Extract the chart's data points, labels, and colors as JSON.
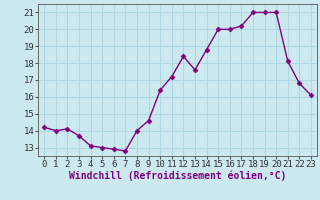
{
  "x": [
    0,
    1,
    2,
    3,
    4,
    5,
    6,
    7,
    8,
    9,
    10,
    11,
    12,
    13,
    14,
    15,
    16,
    17,
    18,
    19,
    20,
    21,
    22,
    23
  ],
  "y": [
    14.2,
    14.0,
    14.1,
    13.7,
    13.1,
    13.0,
    12.9,
    12.8,
    14.0,
    14.6,
    16.4,
    17.2,
    18.4,
    17.6,
    18.8,
    20.0,
    20.0,
    20.2,
    21.0,
    21.0,
    21.0,
    18.1,
    16.8,
    16.1
  ],
  "line_color": "#800080",
  "marker": "D",
  "marker_size": 2.5,
  "bg_color": "#cce9f0",
  "grid_color": "#b0d8e4",
  "xlabel": "Windchill (Refroidissement éolien,°C)",
  "xlabel_fontsize": 7,
  "tick_fontsize": 6.5,
  "ylim": [
    12.5,
    21.5
  ],
  "xlim": [
    -0.5,
    23.5
  ],
  "yticks": [
    13,
    14,
    15,
    16,
    17,
    18,
    19,
    20,
    21
  ],
  "xticks": [
    0,
    1,
    2,
    3,
    4,
    5,
    6,
    7,
    8,
    9,
    10,
    11,
    12,
    13,
    14,
    15,
    16,
    17,
    18,
    19,
    20,
    21,
    22,
    23
  ]
}
